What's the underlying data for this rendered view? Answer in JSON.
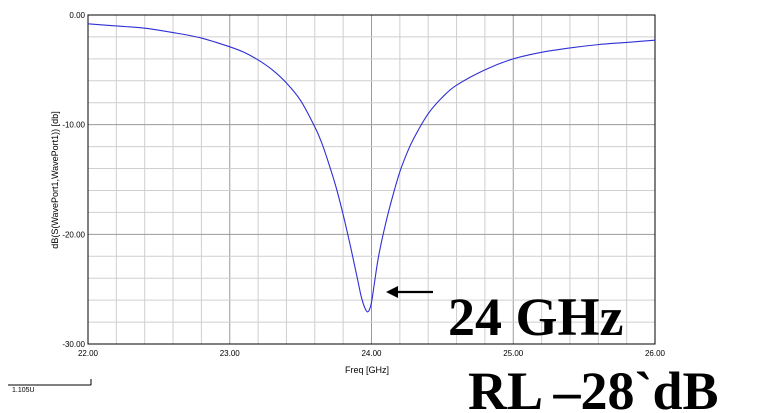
{
  "chart_data": {
    "type": "line",
    "xlabel": "Freq [GHz]",
    "ylabel": "dB(S(WavePort1,WavePort1)) [db]",
    "xlim": [
      22.0,
      26.0
    ],
    "ylim": [
      -30.0,
      0.0
    ],
    "x_ticks": [
      "22.00",
      "23.00",
      "24.00",
      "25.00",
      "26.00"
    ],
    "y_ticks": [
      "0.00",
      "-10.00",
      "-20.00",
      "-30.00"
    ],
    "x_tick_values": [
      22.0,
      23.0,
      24.0,
      25.0,
      26.0
    ],
    "y_tick_values": [
      0.0,
      -10.0,
      -20.0,
      -30.0
    ],
    "grid": true,
    "series": [
      {
        "color": "#2f2fd6",
        "x": [
          22.0,
          22.2,
          22.4,
          22.6,
          22.8,
          23.0,
          23.1,
          23.2,
          23.3,
          23.4,
          23.5,
          23.6,
          23.65,
          23.7,
          23.75,
          23.8,
          23.85,
          23.9,
          23.93,
          23.96,
          23.98,
          24.0,
          24.02,
          24.05,
          24.1,
          24.15,
          24.2,
          24.25,
          24.3,
          24.4,
          24.5,
          24.6,
          24.8,
          25.0,
          25.2,
          25.4,
          25.6,
          25.8,
          26.0
        ],
        "values": [
          -0.8,
          -1.0,
          -1.2,
          -1.6,
          -2.1,
          -2.9,
          -3.4,
          -4.1,
          -5.0,
          -6.2,
          -7.8,
          -10.2,
          -11.7,
          -13.6,
          -15.7,
          -18.2,
          -21.0,
          -24.0,
          -25.8,
          -26.9,
          -27.0,
          -26.2,
          -24.5,
          -22.0,
          -19.0,
          -16.5,
          -14.3,
          -12.6,
          -11.2,
          -9.0,
          -7.5,
          -6.4,
          -5.0,
          -4.0,
          -3.4,
          -3.0,
          -2.7,
          -2.5,
          -2.3
        ]
      }
    ]
  },
  "annotations": {
    "arrow_label": "24 GHz",
    "rl_label": "RL –28`dB"
  },
  "footer_fragment": "1.105U"
}
